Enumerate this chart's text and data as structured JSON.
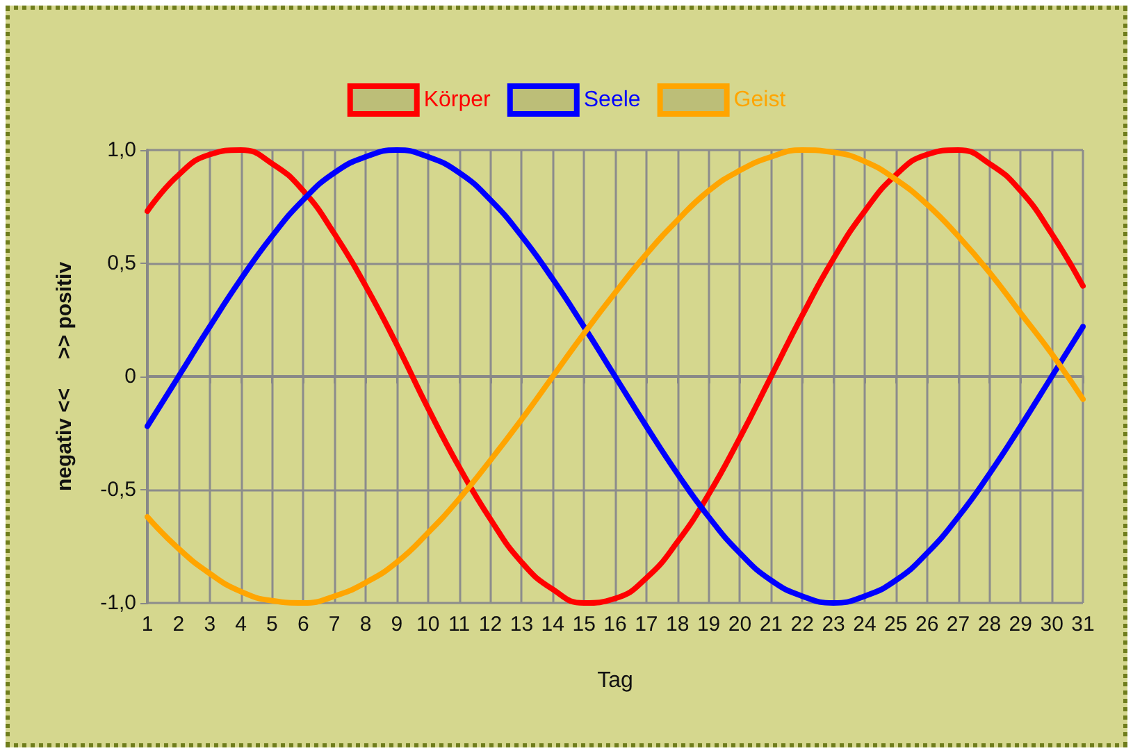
{
  "chart_data": {
    "type": "line",
    "xlabel": "Tag",
    "ylabel": "negativ <<     >> positiv",
    "x": [
      1,
      2,
      3,
      4,
      5,
      6,
      7,
      8,
      9,
      10,
      11,
      12,
      13,
      14,
      15,
      16,
      17,
      18,
      19,
      20,
      21,
      22,
      23,
      24,
      25,
      26,
      27,
      28,
      29,
      30,
      31
    ],
    "series": [
      {
        "name": "Körper",
        "color": "#ff0000",
        "values": [
          0.73,
          0.89,
          0.98,
          1.0,
          0.94,
          0.82,
          0.63,
          0.4,
          0.14,
          -0.14,
          -0.4,
          -0.63,
          -0.82,
          -0.94,
          -1.0,
          -0.98,
          -0.89,
          -0.73,
          -0.52,
          -0.27,
          0,
          0.27,
          0.52,
          0.73,
          0.89,
          0.98,
          1.0,
          0.94,
          0.82,
          0.63,
          0.4
        ]
      },
      {
        "name": "Seele",
        "color": "#0000ff",
        "values": [
          -0.22,
          0,
          0.22,
          0.43,
          0.62,
          0.78,
          0.9,
          0.97,
          1.0,
          0.97,
          0.9,
          0.78,
          0.62,
          0.43,
          0.22,
          0,
          -0.22,
          -0.43,
          -0.62,
          -0.78,
          -0.9,
          -0.97,
          -1.0,
          -0.97,
          -0.9,
          -0.78,
          -0.62,
          -0.43,
          -0.22,
          0,
          0.22
        ]
      },
      {
        "name": "Geist",
        "color": "#ffa500",
        "values": [
          -0.62,
          -0.76,
          -0.87,
          -0.95,
          -0.99,
          -1.0,
          -0.97,
          -0.91,
          -0.82,
          -0.69,
          -0.54,
          -0.37,
          -0.19,
          0,
          0.19,
          0.37,
          0.54,
          0.69,
          0.82,
          0.91,
          0.97,
          1.0,
          0.99,
          0.95,
          0.87,
          0.76,
          0.62,
          0.46,
          0.28,
          0.1,
          -0.1
        ]
      }
    ],
    "xlim": [
      1,
      31
    ],
    "xticks": [
      1,
      2,
      3,
      4,
      5,
      6,
      7,
      8,
      9,
      10,
      11,
      12,
      13,
      14,
      15,
      16,
      17,
      18,
      19,
      20,
      21,
      22,
      23,
      24,
      25,
      26,
      27,
      28,
      29,
      30,
      31
    ],
    "ylim": [
      -1,
      1
    ],
    "yticks": [
      {
        "value": -1,
        "label": "-1,0"
      },
      {
        "value": -0.5,
        "label": "-0,5"
      },
      0,
      {
        "value": 0.5,
        "label": "0,5"
      },
      {
        "value": 1,
        "label": "1,0"
      }
    ],
    "grid": true,
    "legend": "top",
    "marker": "none",
    "line_style": "solid"
  }
}
